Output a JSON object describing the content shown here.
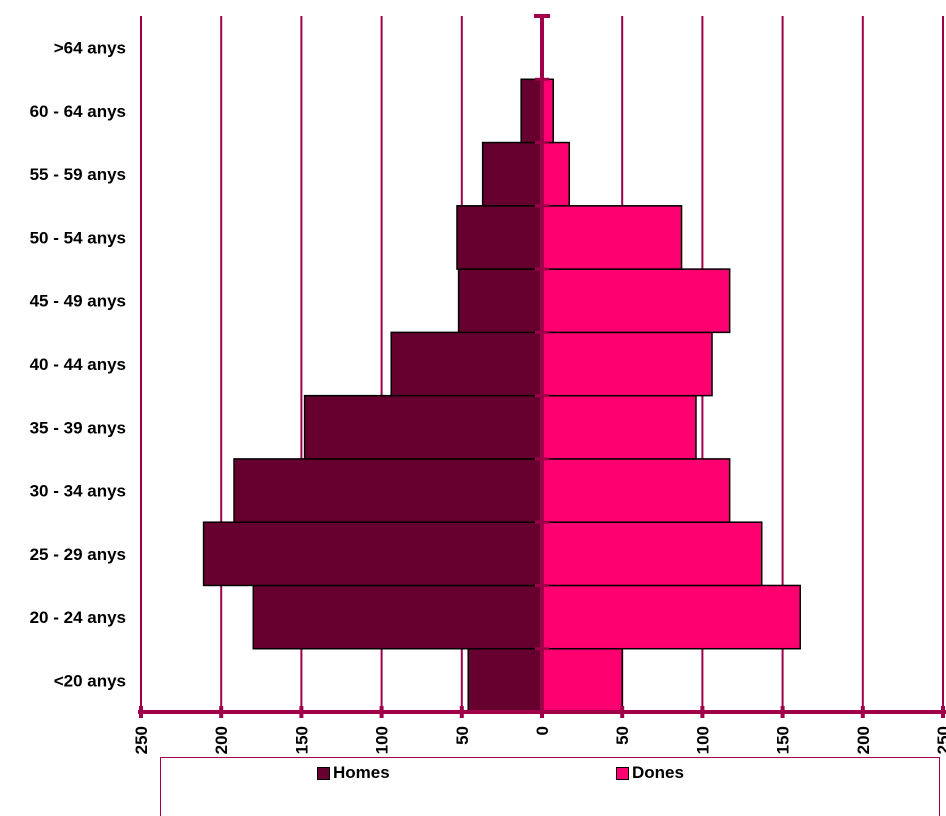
{
  "chart_data": {
    "type": "bar",
    "orientation": "horizontal-pyramid",
    "categories": [
      "<20 anys",
      "20 - 24 anys",
      "25 - 29 anys",
      "30 - 34 anys",
      "35 - 39 anys",
      "40 - 44 anys",
      "45 - 49 anys",
      "50 - 54 anys",
      "55 - 59 anys",
      "60 - 64 anys",
      ">64 anys"
    ],
    "series": [
      {
        "name": "Homes",
        "color": "#66002e",
        "values": [
          46,
          180,
          211,
          192,
          148,
          94,
          52,
          53,
          37,
          13,
          0
        ]
      },
      {
        "name": "Dones",
        "color": "#ff0070",
        "values": [
          50,
          161,
          137,
          117,
          96,
          106,
          117,
          87,
          17,
          7,
          0
        ]
      }
    ],
    "xlim": [
      -250,
      250
    ],
    "x_ticks": [
      -250,
      -200,
      -150,
      -100,
      -50,
      0,
      50,
      100,
      150,
      200,
      250
    ],
    "x_tick_labels": [
      "250",
      "200",
      "150",
      "100",
      "50",
      "0",
      "50",
      "100",
      "150",
      "200",
      "250"
    ],
    "grid": "vertical",
    "gridline_color": "#a0004a",
    "legend_position": "bottom"
  },
  "legend": {
    "items": [
      {
        "label": "Homes",
        "color": "#66002e"
      },
      {
        "label": "Dones",
        "color": "#ff0070"
      }
    ]
  }
}
